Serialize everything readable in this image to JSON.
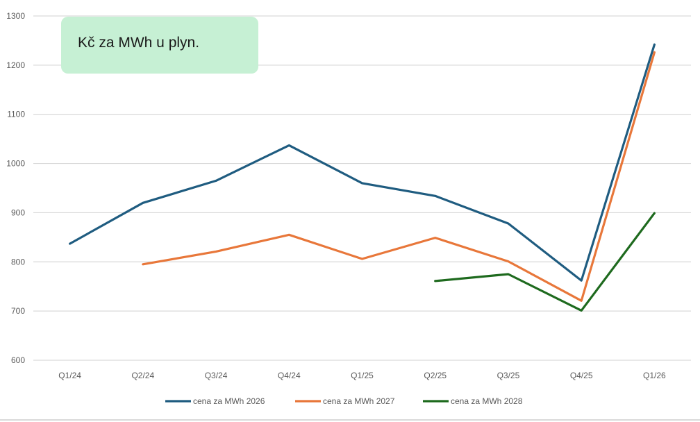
{
  "chart_data": {
    "type": "line",
    "title": "",
    "xlabel": "",
    "ylabel": "",
    "ylim": [
      600,
      1300
    ],
    "yticks": [
      600,
      700,
      800,
      900,
      1000,
      1100,
      1200,
      1300
    ],
    "categories": [
      "Q1/24",
      "Q2/24",
      "Q3/24",
      "Q4/24",
      "Q1/25",
      "Q2/25",
      "Q3/25",
      "Q4/25",
      "Q1/26"
    ],
    "series": [
      {
        "name": "cena za MWh 2026",
        "color": "#1f5c80",
        "values": [
          837,
          920,
          965,
          1037,
          960,
          934,
          878,
          762,
          1242
        ]
      },
      {
        "name": "cena za MWh 2027",
        "color": "#e8773a",
        "values": [
          null,
          795,
          821,
          855,
          806,
          849,
          801,
          721,
          1226
        ]
      },
      {
        "name": "cena za MWh 2028",
        "color": "#1e6a1e",
        "values": [
          null,
          null,
          null,
          null,
          null,
          761,
          775,
          701,
          899
        ]
      }
    ],
    "grid": true,
    "legend": "bottom",
    "annotation": "Kč za MWh u plyn."
  }
}
